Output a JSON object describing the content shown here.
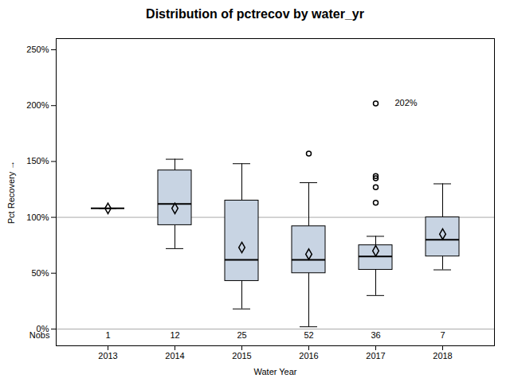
{
  "chart_data": {
    "type": "box",
    "title": "Distribution of pctrecov by water_yr",
    "xlabel": "Water Year",
    "ylabel": "Pct Recovery",
    "categories": [
      2013,
      2014,
      2015,
      2016,
      2017,
      2018
    ],
    "boxes": [
      {
        "whislo": 1.08,
        "q1": 1.08,
        "med": 1.08,
        "q3": 1.08,
        "whishi": 1.08,
        "mean": 1.08,
        "fliers": []
      },
      {
        "whislo": 0.72,
        "q1": 0.93,
        "med": 1.12,
        "q3": 1.42,
        "whishi": 1.52,
        "mean": 1.08,
        "fliers": []
      },
      {
        "whislo": 0.18,
        "q1": 0.43,
        "med": 0.62,
        "q3": 1.15,
        "whishi": 1.48,
        "mean": 0.73,
        "fliers": []
      },
      {
        "whislo": 0.02,
        "q1": 0.5,
        "med": 0.62,
        "q3": 0.92,
        "whishi": 1.31,
        "mean": 0.67,
        "fliers": [
          1.57
        ]
      },
      {
        "whislo": 0.3,
        "q1": 0.53,
        "med": 0.65,
        "q3": 0.75,
        "whishi": 0.83,
        "mean": 0.7,
        "fliers": [
          1.13,
          1.27,
          1.35,
          1.37,
          2.02
        ]
      },
      {
        "whislo": 0.53,
        "q1": 0.65,
        "med": 0.8,
        "q3": 1.0,
        "whishi": 1.3,
        "mean": 0.85,
        "fliers": []
      }
    ],
    "nobs_label": "Nobs",
    "nobs": [
      1,
      12,
      25,
      52,
      36,
      7
    ],
    "ylim": [
      -0.15,
      2.6
    ],
    "yticks": [
      {
        "value": 0.0,
        "label": "0%"
      },
      {
        "value": 0.5,
        "label": "50%"
      },
      {
        "value": 1.0,
        "label": "100%"
      },
      {
        "value": 1.5,
        "label": "150%"
      },
      {
        "value": 2.0,
        "label": "200%"
      },
      {
        "value": 2.5,
        "label": "250%"
      }
    ],
    "hlines": [
      1.0,
      0.0
    ],
    "annotations": [
      {
        "text": "202%",
        "x": 2017,
        "y": 2.02
      }
    ],
    "color": "#c8d4e3",
    "grid": false,
    "legend": false
  }
}
